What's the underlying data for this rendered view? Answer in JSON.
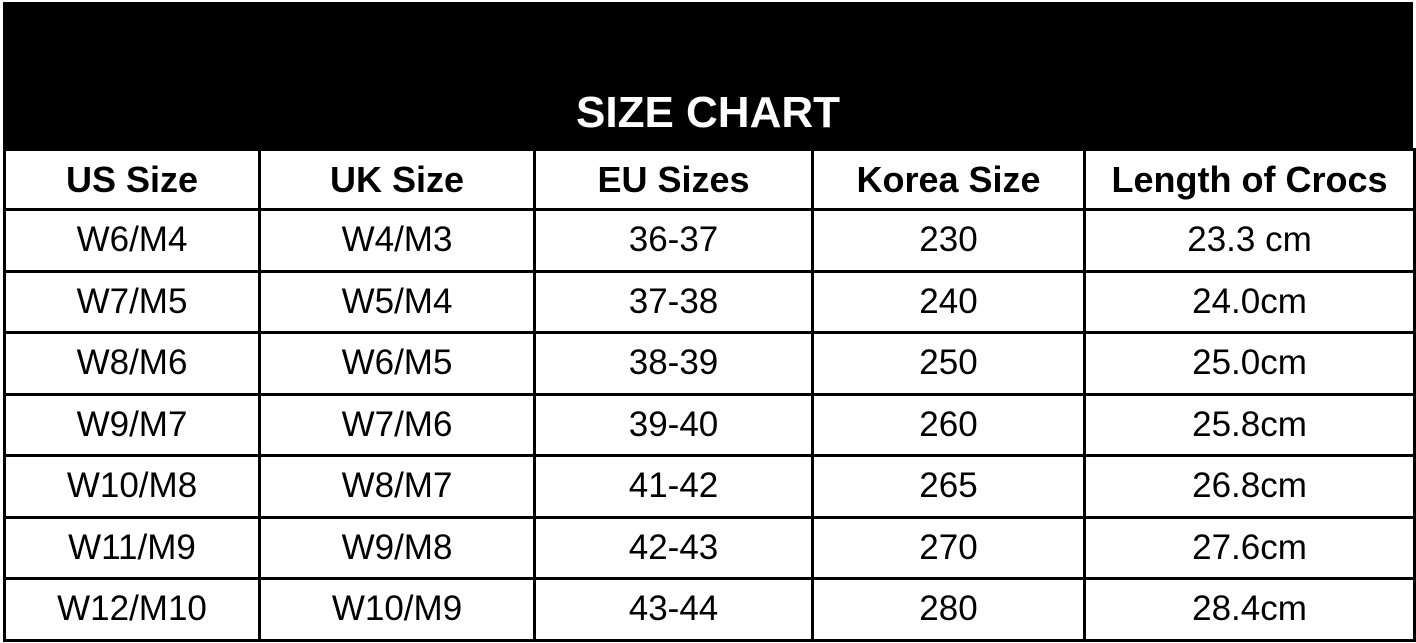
{
  "title": "SIZE CHART",
  "headers": [
    "US Size",
    "UK Size",
    "EU Sizes",
    "Korea Size",
    "Length of Crocs"
  ],
  "rows": [
    [
      "W6/M4",
      "W4/M3",
      "36-37",
      "230",
      "23.3 cm"
    ],
    [
      "W7/M5",
      "W5/M4",
      "37-38",
      "240",
      "24.0cm"
    ],
    [
      "W8/M6",
      "W6/M5",
      "38-39",
      "250",
      "25.0cm"
    ],
    [
      "W9/M7",
      "W7/M6",
      "39-40",
      "260",
      "25.8cm"
    ],
    [
      "W10/M8",
      "W8/M7",
      "41-42",
      "265",
      "26.8cm"
    ],
    [
      "W11/M9",
      "W9/M8",
      "42-43",
      "270",
      "27.6cm"
    ],
    [
      "W12/M10",
      "W10/M9",
      "43-44",
      "280",
      "28.4cm"
    ]
  ]
}
